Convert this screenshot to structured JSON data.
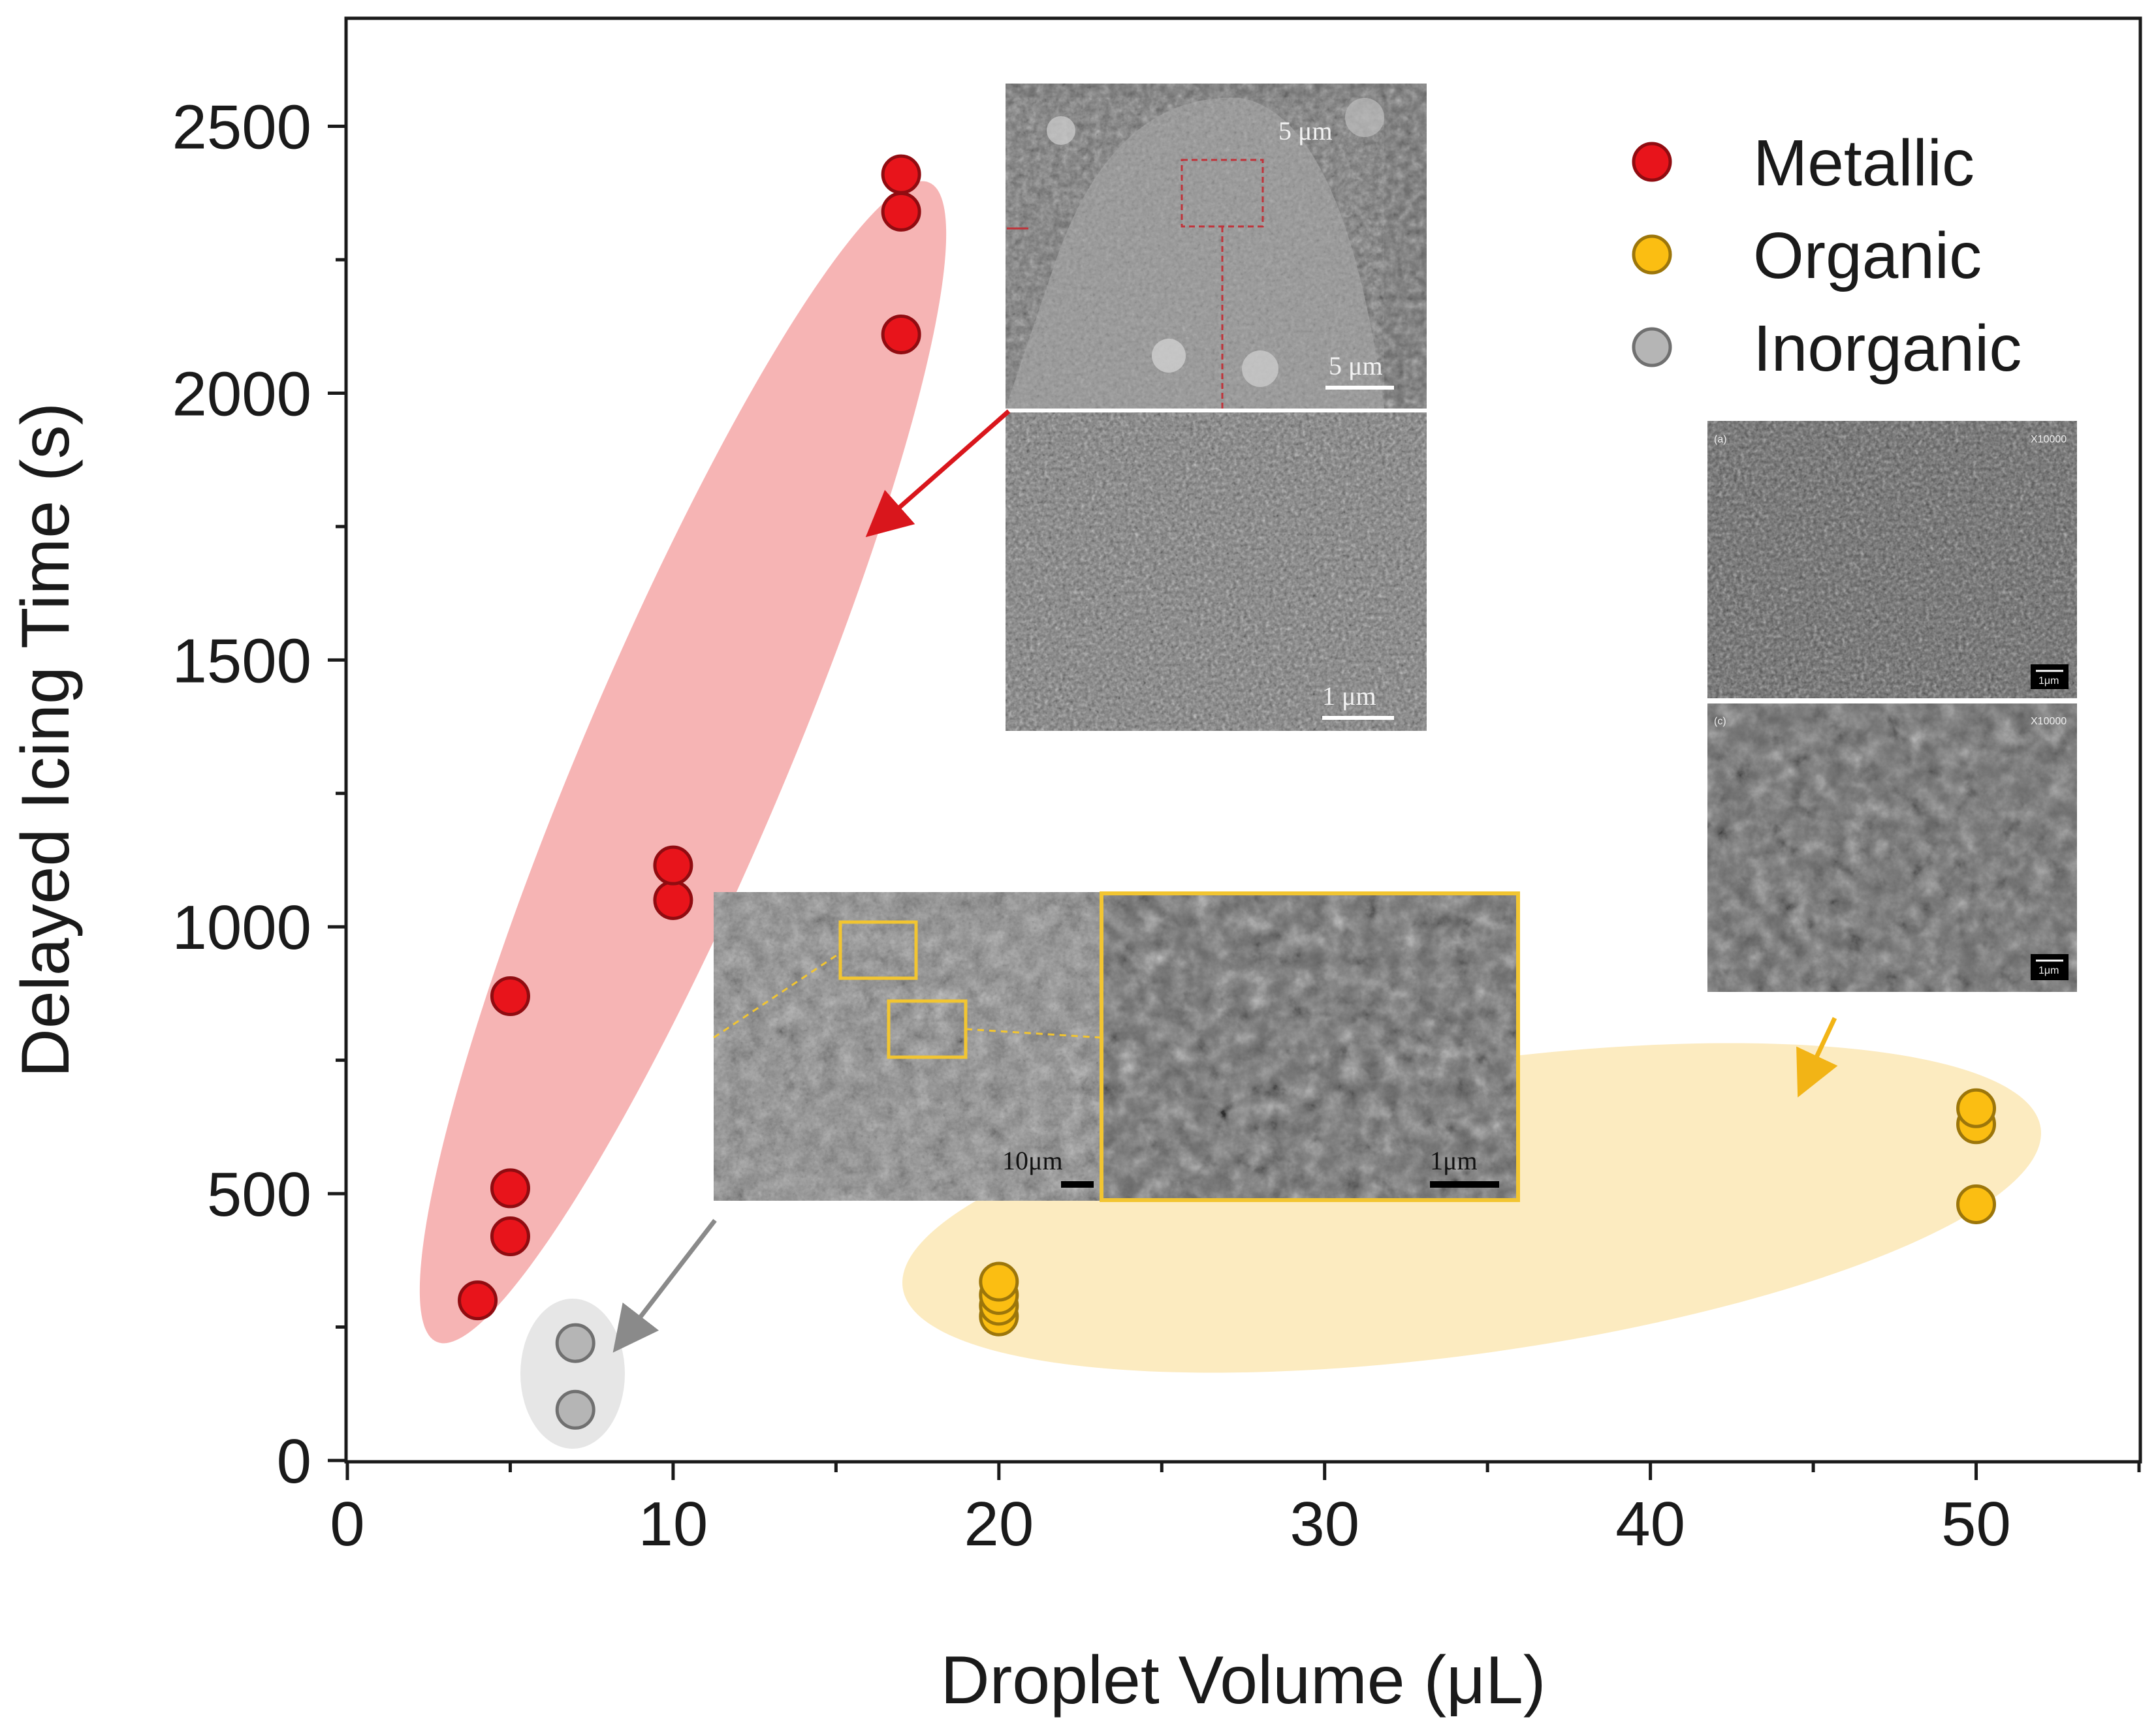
{
  "chart_data": {
    "type": "scatter",
    "xlabel": "Droplet Volume (μL)",
    "ylabel": "Delayed Icing Time (s)",
    "xlim": [
      0,
      55
    ],
    "ylim": [
      0,
      2700
    ],
    "x_ticks": [
      "0",
      "10",
      "20",
      "30",
      "40",
      "50"
    ],
    "y_ticks": [
      "0",
      "500",
      "1000",
      "1500",
      "2000",
      "2500"
    ],
    "legend_position": "top-right",
    "series": [
      {
        "name": "Metallic",
        "color": "#e8141b",
        "shade": "#f6b4b4",
        "points": [
          {
            "x": 4,
            "y": 300
          },
          {
            "x": 5,
            "y": 420
          },
          {
            "x": 5,
            "y": 510
          },
          {
            "x": 5,
            "y": 870
          },
          {
            "x": 10,
            "y": 1050
          },
          {
            "x": 10,
            "y": 1115
          },
          {
            "x": 17,
            "y": 2110
          },
          {
            "x": 17,
            "y": 2340
          },
          {
            "x": 17,
            "y": 2410
          }
        ]
      },
      {
        "name": "Organic",
        "color": "#fbbe12",
        "shade": "#fcebc0",
        "points": [
          {
            "x": 20,
            "y": 270
          },
          {
            "x": 20,
            "y": 290
          },
          {
            "x": 20,
            "y": 310
          },
          {
            "x": 20,
            "y": 335
          },
          {
            "x": 50,
            "y": 480
          },
          {
            "x": 50,
            "y": 630
          },
          {
            "x": 50,
            "y": 660
          }
        ]
      },
      {
        "name": "Inorganic",
        "color": "#b5b5b5",
        "shade": "#e6e6e6",
        "points": [
          {
            "x": 7,
            "y": 95
          },
          {
            "x": 7,
            "y": 220
          }
        ]
      }
    ],
    "inset_labels": {
      "metallic_top_scale": "5 μm",
      "metallic_top_corner": "5 μm",
      "metallic_bottom_scale": "1 μm",
      "inorganic_left_scale": "10μm",
      "inorganic_right_scale": "1μm",
      "organic_top_left": "(a)",
      "organic_top_right": "X10000",
      "organic_top_scale": "1μm",
      "organic_bottom_left": "(c)",
      "organic_bottom_right": "X10000",
      "organic_bottom_scale": "1μm"
    }
  }
}
